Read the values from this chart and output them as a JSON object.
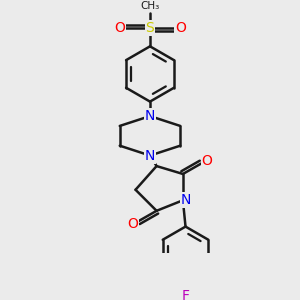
{
  "background_color": "#ebebeb",
  "line_color": "#1a1a1a",
  "bond_width": 1.8,
  "atom_colors": {
    "N": "#0000ee",
    "O": "#ff0000",
    "F": "#bb00bb",
    "S": "#cccc00",
    "C": "#1a1a1a"
  },
  "font_size": 9,
  "figsize": [
    3.0,
    3.0
  ],
  "dpi": 100
}
